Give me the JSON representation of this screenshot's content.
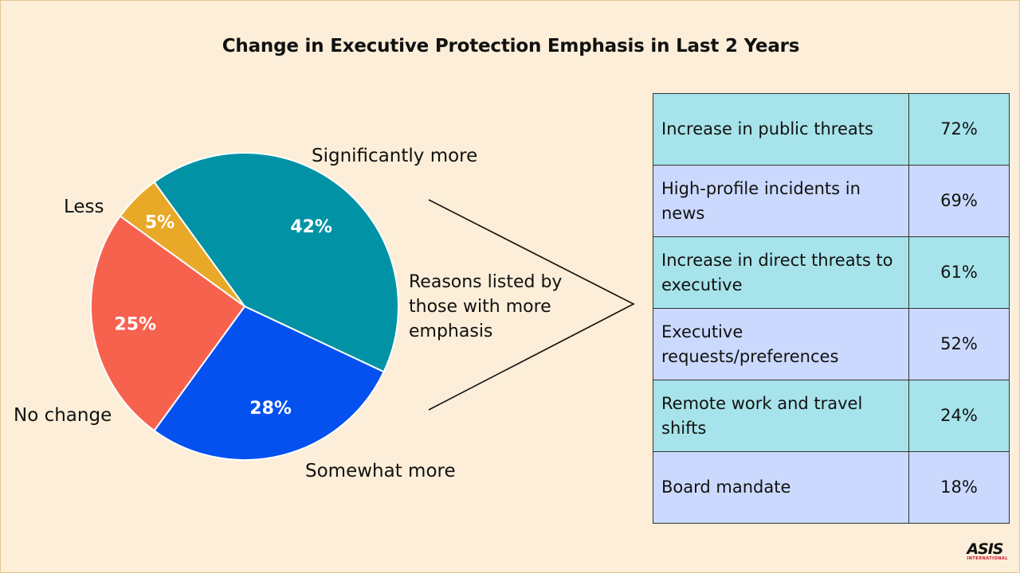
{
  "chart_data": {
    "type": "pie",
    "title": "Change in Executive Protection Emphasis in Last 2 Years",
    "slices": [
      {
        "label": "Significantly more",
        "value": 42,
        "display": "42%",
        "color": "#0193A5"
      },
      {
        "label": "Somewhat more",
        "value": 28,
        "display": "28%",
        "color": "#0451F0"
      },
      {
        "label": "No change",
        "value": 25,
        "display": "25%",
        "color": "#F7624F"
      },
      {
        "label": "Less",
        "value": 5,
        "display": "5%",
        "color": "#E8A928"
      }
    ]
  },
  "callout": {
    "label": "Reasons listed by those with more emphasis"
  },
  "reasons_table": {
    "rows": [
      {
        "reason": "Increase in public threats",
        "value": "72%",
        "color": "#A7E3EA"
      },
      {
        "reason": "High-profile incidents in news",
        "value": "69%",
        "color": "#CAD9FD"
      },
      {
        "reason": "Increase in direct threats to executive",
        "value": "61%",
        "color": "#A7E3EA"
      },
      {
        "reason": "Executive requests/preferences",
        "value": "52%",
        "color": "#CAD9FD"
      },
      {
        "reason": "Remote work and travel shifts",
        "value": "24%",
        "color": "#A7E3EA"
      },
      {
        "reason": "Board mandate",
        "value": "18%",
        "color": "#CAD9FD"
      }
    ]
  },
  "logo": {
    "text": "ASIS",
    "sub": "INTERNATIONAL"
  }
}
